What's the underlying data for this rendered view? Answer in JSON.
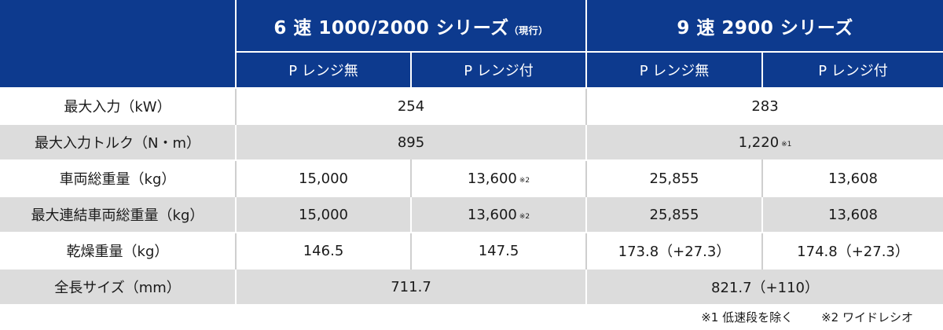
{
  "header": {
    "group1_main": "6 速 1000/2000 シリーズ",
    "group1_small": "（現行）",
    "group2": "9 速 2900 シリーズ",
    "sub_labels": [
      "P レンジ無",
      "P レンジ付",
      "P レンジ無",
      "P レンジ付"
    ]
  },
  "rows": [
    {
      "label": "最大入力（kW）",
      "g1": "254",
      "g2": "283"
    },
    {
      "label": "最大入力トルク（N・m）",
      "g1": "895",
      "g2": "1,220",
      "g2_note": "※1"
    },
    {
      "label": "車両総重量（kg）",
      "c": [
        "15,000",
        "13,600",
        "25,855",
        "13,608"
      ],
      "c2_note": "※2"
    },
    {
      "label": "最大連結車両総重量（kg）",
      "c": [
        "15,000",
        "13,600",
        "25,855",
        "13,608"
      ],
      "c2_note": "※2"
    },
    {
      "label": "乾燥重量（kg）",
      "c": [
        "146.5",
        "147.5",
        "173.8（+27.3）",
        "174.8（+27.3）"
      ]
    },
    {
      "label": "全長サイズ（mm）",
      "g1": "711.7",
      "g2": "821.7（+110）"
    }
  ],
  "footnotes": [
    "※1  低速段を除く",
    "※2  ワイドレシオ"
  ],
  "colors": {
    "header_bg": "#0d3a8e",
    "stripe_bg": "#dcdcdc"
  }
}
